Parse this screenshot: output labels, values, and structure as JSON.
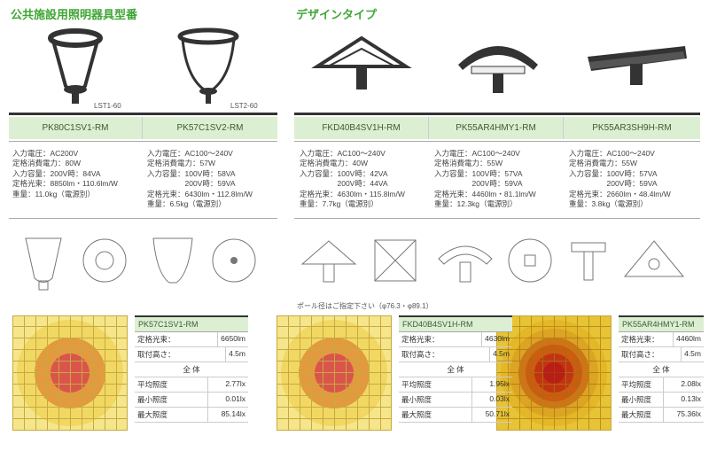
{
  "titles": {
    "left": "公共施設用照明器具型番",
    "right": "デザインタイプ"
  },
  "labels": {
    "lst1": "LST1-60",
    "lst2": "LST2-60"
  },
  "models": {
    "m1": "PK80C1SV1-RM",
    "m2": "PK57C1SV2-RM",
    "m3": "FKD40B4SV1H-RM",
    "m4": "PK55AR4HMY1-RM",
    "m5": "PK55AR3SH9H-RM"
  },
  "specs": {
    "s1": [
      "入力電圧：AC200V",
      "定格消費電力：80W",
      "入力容量：200V時：84VA",
      "定格光束：8850lm・110.6lm/W",
      "重量：11.0kg（電源別）"
    ],
    "s2": [
      "入力電圧：AC100～240V",
      "定格消費電力：57W",
      "入力容量：100V時：58VA",
      "　　　　　200V時：59VA",
      "定格光束：6430lm・112.8lm/W",
      "重量：6.5kg（電源別）"
    ],
    "s3": [
      "入力電圧：AC100～240V",
      "定格消費電力：40W",
      "入力容量：100V時：42VA",
      "　　　　　200V時：44VA",
      "定格光束：4630lm・115.8lm/W",
      "重量：7.7kg（電源別）"
    ],
    "s4": [
      "入力電圧：AC100～240V",
      "定格消費電力：55W",
      "入力容量：100V時：57VA",
      "　　　　　200V時：59VA",
      "定格光束：4460lm・81.1lm/W",
      "重量：12.3kg（電源別）"
    ],
    "s5": [
      "入力電圧：AC100～240V",
      "定格消費電力：55W",
      "入力容量：100V時：57VA",
      "　　　　　200V時：59VA",
      "定格光束：2660lm・48.4lm/W",
      "重量：3.8kg（電源別）"
    ]
  },
  "note": "ポール径はご指定下さい（φ76.3・φ89.1）",
  "heat_tables": {
    "h1": {
      "model": "PK57C1SV1-RM",
      "flux_label": "定格光束：",
      "flux": "6650lm",
      "height_label": "取付高さ：",
      "height": "4.5m",
      "header": "全 体",
      "rows": [
        {
          "k": "平均照度",
          "v": "2.77lx"
        },
        {
          "k": "最小照度",
          "v": "0.01lx"
        },
        {
          "k": "最大照度",
          "v": "85.14lx"
        }
      ]
    },
    "h2": {
      "model": "FKD40B4SV1H-RM",
      "flux_label": "定格光束：",
      "flux": "4630lm",
      "height_label": "取付高さ：",
      "height": "4.5m",
      "header": "全 体",
      "rows": [
        {
          "k": "平均照度",
          "v": "1.95lx"
        },
        {
          "k": "最小照度",
          "v": "0.03lx"
        },
        {
          "k": "最大照度",
          "v": "50.71lx"
        }
      ]
    },
    "h3": {
      "model": "PK55AR4HMY1-RM",
      "flux_label": "定格光束：",
      "flux": "4460lm",
      "height_label": "取付高さ：",
      "height": "4.5m",
      "header": "全 体",
      "rows": [
        {
          "k": "平均照度",
          "v": "2.08lx"
        },
        {
          "k": "最小照度",
          "v": "0.13lx"
        },
        {
          "k": "最大照度",
          "v": "75.36lx"
        }
      ]
    }
  },
  "colors": {
    "accent": "#3fa635",
    "model_bg": "#dcefd3",
    "heat_center": "#d9554b",
    "heat_ring": "#e39a3f",
    "heat_outer": "#f1d863"
  }
}
